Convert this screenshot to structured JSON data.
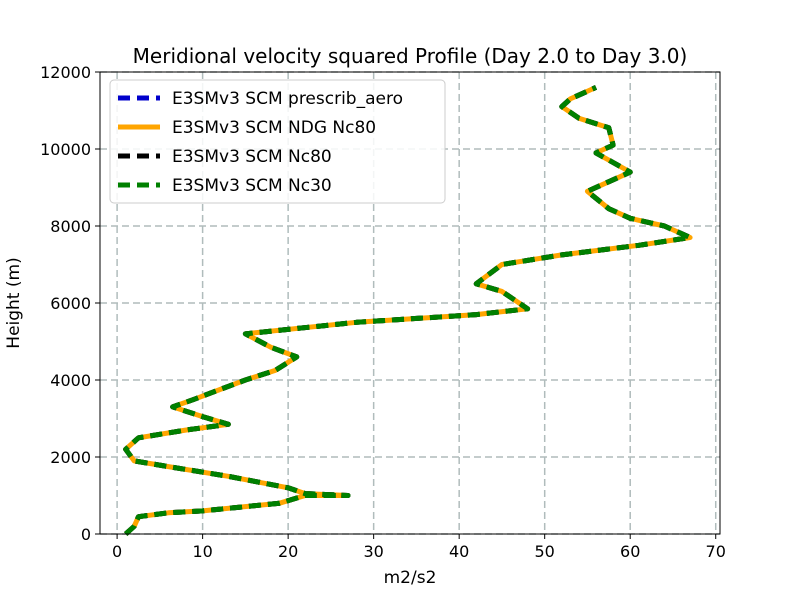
{
  "chart_data": {
    "type": "line",
    "title": "Meridional velocity squared Profile (Day 2.0 to Day 3.0)",
    "xlabel": "m2/s2",
    "ylabel": "Height (m)",
    "xlim": [
      -2,
      70.5
    ],
    "ylim": [
      0,
      12000
    ],
    "xticks": [
      "0",
      "10",
      "20",
      "30",
      "40",
      "50",
      "60",
      "70"
    ],
    "yticks": [
      "0",
      "2000",
      "4000",
      "6000",
      "8000",
      "10000",
      "12000"
    ],
    "grid": true,
    "legend_position": "upper-left",
    "series": [
      {
        "name": "E3SMv3 SCM prescrib_aero",
        "color": "#0000cc",
        "style": "dashed"
      },
      {
        "name": "E3SMv3 SCM NDG Nc80",
        "color": "#ffa500",
        "style": "solid"
      },
      {
        "name": "E3SMv3 SCM Nc80",
        "color": "#000000",
        "style": "dashed"
      },
      {
        "name": "E3SMv3 SCM Nc30",
        "color": "#008000",
        "style": "dashed"
      }
    ],
    "profile": {
      "x": [
        1.0,
        2.0,
        2.5,
        6.0,
        10.0,
        19.0,
        22.0,
        26.0,
        27.0,
        22.0,
        20.0,
        13.0,
        6.0,
        2.0,
        1.0,
        2.5,
        8.0,
        13.0,
        10.0,
        6.5,
        9.0,
        12.0,
        15.0,
        18.5,
        21.0,
        18.0,
        15.0,
        28.0,
        42.0,
        48.0,
        45.0,
        42.0,
        45.0,
        52.0,
        61.0,
        67.0,
        64.0,
        60.0,
        57.5,
        55.0,
        58.0,
        60.0,
        58.0,
        56.0,
        58.0,
        57.5,
        54.0,
        52.0,
        53.0,
        56.0
      ],
      "y": [
        0,
        200,
        450,
        550,
        600,
        800,
        1000,
        1000,
        1000,
        1050,
        1200,
        1500,
        1750,
        1900,
        2200,
        2500,
        2700,
        2850,
        3050,
        3300,
        3500,
        3750,
        4000,
        4250,
        4600,
        4850,
        5200,
        5500,
        5700,
        5850,
        6300,
        6500,
        7000,
        7250,
        7500,
        7700,
        8000,
        8200,
        8450,
        8900,
        9200,
        9400,
        9650,
        9900,
        10100,
        10550,
        10800,
        11100,
        11300,
        11600
      ]
    }
  }
}
